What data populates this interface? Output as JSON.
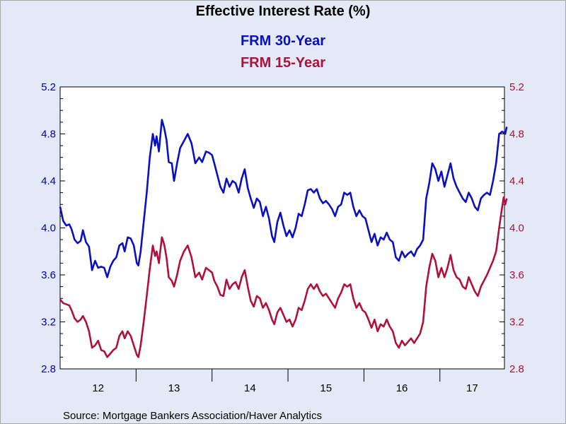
{
  "chart_data": {
    "type": "line",
    "title": "Effective Interest Rate (%)",
    "source": "Source:  Mortgage Bankers Association/Haver Analytics",
    "x_categories": [
      "12",
      "13",
      "14",
      "15",
      "16",
      "17"
    ],
    "x_range": [
      2012.0,
      2017.85
    ],
    "ylim": [
      2.8,
      5.2
    ],
    "yticks": [
      "2.8",
      "3.2",
      "3.6",
      "4.0",
      "4.4",
      "4.8",
      "5.2"
    ],
    "y_axis_left_color": "#0000b4",
    "y_axis_right_color": "#b0103c",
    "grid": false,
    "legend": "top-center",
    "series": [
      {
        "name": "FRM 30-Year",
        "color": "#0a10c0",
        "points": [
          [
            2012.0,
            4.18
          ],
          [
            2012.04,
            4.06
          ],
          [
            2012.08,
            4.02
          ],
          [
            2012.12,
            4.03
          ],
          [
            2012.15,
            3.99
          ],
          [
            2012.19,
            3.9
          ],
          [
            2012.23,
            3.87
          ],
          [
            2012.27,
            3.89
          ],
          [
            2012.3,
            3.98
          ],
          [
            2012.34,
            3.88
          ],
          [
            2012.38,
            3.84
          ],
          [
            2012.42,
            3.64
          ],
          [
            2012.46,
            3.72
          ],
          [
            2012.5,
            3.66
          ],
          [
            2012.54,
            3.67
          ],
          [
            2012.58,
            3.66
          ],
          [
            2012.62,
            3.58
          ],
          [
            2012.66,
            3.67
          ],
          [
            2012.7,
            3.72
          ],
          [
            2012.74,
            3.75
          ],
          [
            2012.78,
            3.85
          ],
          [
            2012.82,
            3.87
          ],
          [
            2012.85,
            3.8
          ],
          [
            2012.89,
            3.92
          ],
          [
            2012.93,
            3.91
          ],
          [
            2012.97,
            3.85
          ],
          [
            2013.01,
            3.7
          ],
          [
            2013.03,
            3.68
          ],
          [
            2013.06,
            3.8
          ],
          [
            2013.1,
            4.05
          ],
          [
            2013.14,
            4.3
          ],
          [
            2013.18,
            4.6
          ],
          [
            2013.22,
            4.8
          ],
          [
            2013.25,
            4.7
          ],
          [
            2013.27,
            4.78
          ],
          [
            2013.3,
            4.65
          ],
          [
            2013.34,
            4.92
          ],
          [
            2013.37,
            4.85
          ],
          [
            2013.4,
            4.75
          ],
          [
            2013.43,
            4.56
          ],
          [
            2013.47,
            4.55
          ],
          [
            2013.5,
            4.4
          ],
          [
            2013.54,
            4.55
          ],
          [
            2013.58,
            4.68
          ],
          [
            2013.63,
            4.74
          ],
          [
            2013.68,
            4.8
          ],
          [
            2013.73,
            4.72
          ],
          [
            2013.78,
            4.55
          ],
          [
            2013.83,
            4.6
          ],
          [
            2013.87,
            4.56
          ],
          [
            2013.92,
            4.65
          ],
          [
            2013.96,
            4.64
          ],
          [
            2014.0,
            4.62
          ],
          [
            2014.03,
            4.55
          ],
          [
            2014.07,
            4.45
          ],
          [
            2014.11,
            4.35
          ],
          [
            2014.15,
            4.3
          ],
          [
            2014.19,
            4.42
          ],
          [
            2014.23,
            4.35
          ],
          [
            2014.27,
            4.4
          ],
          [
            2014.31,
            4.38
          ],
          [
            2014.35,
            4.3
          ],
          [
            2014.39,
            4.42
          ],
          [
            2014.43,
            4.5
          ],
          [
            2014.47,
            4.34
          ],
          [
            2014.51,
            4.25
          ],
          [
            2014.55,
            4.17
          ],
          [
            2014.59,
            4.25
          ],
          [
            2014.63,
            4.22
          ],
          [
            2014.67,
            4.1
          ],
          [
            2014.71,
            4.18
          ],
          [
            2014.75,
            4.08
          ],
          [
            2014.79,
            3.93
          ],
          [
            2014.82,
            3.88
          ],
          [
            2014.86,
            4.05
          ],
          [
            2014.9,
            4.13
          ],
          [
            2014.94,
            4.02
          ],
          [
            2014.98,
            3.93
          ],
          [
            2015.02,
            3.98
          ],
          [
            2015.06,
            3.92
          ],
          [
            2015.1,
            4.0
          ],
          [
            2015.14,
            4.12
          ],
          [
            2015.18,
            4.1
          ],
          [
            2015.22,
            4.2
          ],
          [
            2015.26,
            4.32
          ],
          [
            2015.3,
            4.33
          ],
          [
            2015.34,
            4.3
          ],
          [
            2015.38,
            4.33
          ],
          [
            2015.42,
            4.25
          ],
          [
            2015.46,
            4.21
          ],
          [
            2015.5,
            4.23
          ],
          [
            2015.54,
            4.2
          ],
          [
            2015.58,
            4.16
          ],
          [
            2015.62,
            4.1
          ],
          [
            2015.66,
            4.18
          ],
          [
            2015.7,
            4.2
          ],
          [
            2015.74,
            4.3
          ],
          [
            2015.78,
            4.28
          ],
          [
            2015.82,
            4.3
          ],
          [
            2015.86,
            4.18
          ],
          [
            2015.9,
            4.1
          ],
          [
            2015.94,
            4.15
          ],
          [
            2015.98,
            4.1
          ],
          [
            2016.02,
            4.08
          ],
          [
            2016.06,
            3.98
          ],
          [
            2016.1,
            3.88
          ],
          [
            2016.14,
            3.95
          ],
          [
            2016.18,
            3.85
          ],
          [
            2016.22,
            3.92
          ],
          [
            2016.26,
            3.9
          ],
          [
            2016.3,
            3.96
          ],
          [
            2016.34,
            3.9
          ],
          [
            2016.38,
            3.88
          ],
          [
            2016.42,
            3.75
          ],
          [
            2016.46,
            3.72
          ],
          [
            2016.5,
            3.8
          ],
          [
            2016.54,
            3.75
          ],
          [
            2016.58,
            3.78
          ],
          [
            2016.62,
            3.8
          ],
          [
            2016.66,
            3.76
          ],
          [
            2016.7,
            3.82
          ],
          [
            2016.74,
            3.85
          ],
          [
            2016.78,
            3.9
          ],
          [
            2016.82,
            4.25
          ],
          [
            2016.86,
            4.38
          ],
          [
            2016.9,
            4.55
          ],
          [
            2016.94,
            4.5
          ],
          [
            2016.98,
            4.4
          ],
          [
            2017.02,
            4.48
          ],
          [
            2017.06,
            4.35
          ],
          [
            2017.1,
            4.45
          ],
          [
            2017.14,
            4.55
          ],
          [
            2017.18,
            4.42
          ],
          [
            2017.22,
            4.35
          ],
          [
            2017.26,
            4.3
          ],
          [
            2017.3,
            4.25
          ],
          [
            2017.34,
            4.22
          ],
          [
            2017.38,
            4.3
          ],
          [
            2017.42,
            4.25
          ],
          [
            2017.46,
            4.18
          ],
          [
            2017.5,
            4.15
          ],
          [
            2017.54,
            4.25
          ],
          [
            2017.58,
            4.28
          ],
          [
            2017.62,
            4.3
          ],
          [
            2017.66,
            4.28
          ],
          [
            2017.7,
            4.4
          ],
          [
            2017.74,
            4.55
          ],
          [
            2017.78,
            4.8
          ],
          [
            2017.82,
            4.82
          ],
          [
            2017.86,
            4.8
          ],
          [
            2017.88,
            4.86
          ]
        ]
      },
      {
        "name": "FRM 15-Year",
        "color": "#b0103c",
        "points": [
          [
            2012.0,
            3.39
          ],
          [
            2012.04,
            3.36
          ],
          [
            2012.08,
            3.35
          ],
          [
            2012.12,
            3.34
          ],
          [
            2012.15,
            3.3
          ],
          [
            2012.19,
            3.23
          ],
          [
            2012.23,
            3.2
          ],
          [
            2012.27,
            3.22
          ],
          [
            2012.3,
            3.25
          ],
          [
            2012.34,
            3.2
          ],
          [
            2012.38,
            3.12
          ],
          [
            2012.42,
            2.98
          ],
          [
            2012.46,
            3.0
          ],
          [
            2012.5,
            3.04
          ],
          [
            2012.54,
            2.96
          ],
          [
            2012.58,
            2.95
          ],
          [
            2012.62,
            2.9
          ],
          [
            2012.66,
            2.93
          ],
          [
            2012.7,
            2.96
          ],
          [
            2012.74,
            2.98
          ],
          [
            2012.78,
            3.08
          ],
          [
            2012.82,
            3.12
          ],
          [
            2012.85,
            3.06
          ],
          [
            2012.89,
            3.12
          ],
          [
            2012.93,
            3.08
          ],
          [
            2012.97,
            3.0
          ],
          [
            2013.01,
            2.92
          ],
          [
            2013.03,
            2.9
          ],
          [
            2013.06,
            3.0
          ],
          [
            2013.1,
            3.2
          ],
          [
            2013.14,
            3.42
          ],
          [
            2013.18,
            3.65
          ],
          [
            2013.22,
            3.85
          ],
          [
            2013.25,
            3.76
          ],
          [
            2013.27,
            3.8
          ],
          [
            2013.3,
            3.7
          ],
          [
            2013.34,
            3.92
          ],
          [
            2013.37,
            3.86
          ],
          [
            2013.4,
            3.75
          ],
          [
            2013.43,
            3.58
          ],
          [
            2013.47,
            3.55
          ],
          [
            2013.5,
            3.5
          ],
          [
            2013.54,
            3.6
          ],
          [
            2013.58,
            3.72
          ],
          [
            2013.63,
            3.8
          ],
          [
            2013.68,
            3.85
          ],
          [
            2013.73,
            3.75
          ],
          [
            2013.78,
            3.58
          ],
          [
            2013.83,
            3.62
          ],
          [
            2013.87,
            3.56
          ],
          [
            2013.92,
            3.66
          ],
          [
            2013.96,
            3.64
          ],
          [
            2014.0,
            3.62
          ],
          [
            2014.03,
            3.55
          ],
          [
            2014.07,
            3.5
          ],
          [
            2014.11,
            3.43
          ],
          [
            2014.15,
            3.42
          ],
          [
            2014.19,
            3.56
          ],
          [
            2014.23,
            3.48
          ],
          [
            2014.27,
            3.52
          ],
          [
            2014.31,
            3.54
          ],
          [
            2014.35,
            3.48
          ],
          [
            2014.39,
            3.58
          ],
          [
            2014.43,
            3.64
          ],
          [
            2014.47,
            3.5
          ],
          [
            2014.51,
            3.38
          ],
          [
            2014.55,
            3.33
          ],
          [
            2014.59,
            3.42
          ],
          [
            2014.63,
            3.4
          ],
          [
            2014.67,
            3.32
          ],
          [
            2014.71,
            3.36
          ],
          [
            2014.75,
            3.3
          ],
          [
            2014.79,
            3.22
          ],
          [
            2014.82,
            3.18
          ],
          [
            2014.86,
            3.28
          ],
          [
            2014.9,
            3.32
          ],
          [
            2014.94,
            3.26
          ],
          [
            2014.98,
            3.2
          ],
          [
            2015.02,
            3.22
          ],
          [
            2015.06,
            3.16
          ],
          [
            2015.1,
            3.22
          ],
          [
            2015.14,
            3.32
          ],
          [
            2015.18,
            3.3
          ],
          [
            2015.22,
            3.38
          ],
          [
            2015.26,
            3.48
          ],
          [
            2015.3,
            3.52
          ],
          [
            2015.34,
            3.48
          ],
          [
            2015.38,
            3.52
          ],
          [
            2015.42,
            3.46
          ],
          [
            2015.46,
            3.42
          ],
          [
            2015.5,
            3.44
          ],
          [
            2015.54,
            3.4
          ],
          [
            2015.58,
            3.36
          ],
          [
            2015.62,
            3.32
          ],
          [
            2015.66,
            3.4
          ],
          [
            2015.7,
            3.45
          ],
          [
            2015.74,
            3.52
          ],
          [
            2015.78,
            3.5
          ],
          [
            2015.82,
            3.52
          ],
          [
            2015.86,
            3.4
          ],
          [
            2015.9,
            3.32
          ],
          [
            2015.94,
            3.36
          ],
          [
            2015.98,
            3.3
          ],
          [
            2016.02,
            3.28
          ],
          [
            2016.06,
            3.22
          ],
          [
            2016.1,
            3.15
          ],
          [
            2016.14,
            3.22
          ],
          [
            2016.18,
            3.12
          ],
          [
            2016.22,
            3.18
          ],
          [
            2016.26,
            3.16
          ],
          [
            2016.3,
            3.22
          ],
          [
            2016.34,
            3.16
          ],
          [
            2016.38,
            3.12
          ],
          [
            2016.42,
            3.02
          ],
          [
            2016.46,
            2.98
          ],
          [
            2016.5,
            3.04
          ],
          [
            2016.54,
            3.0
          ],
          [
            2016.58,
            3.03
          ],
          [
            2016.62,
            3.06
          ],
          [
            2016.66,
            3.02
          ],
          [
            2016.7,
            3.06
          ],
          [
            2016.74,
            3.1
          ],
          [
            2016.78,
            3.2
          ],
          [
            2016.82,
            3.5
          ],
          [
            2016.86,
            3.66
          ],
          [
            2016.9,
            3.78
          ],
          [
            2016.94,
            3.72
          ],
          [
            2016.98,
            3.58
          ],
          [
            2017.02,
            3.66
          ],
          [
            2017.06,
            3.58
          ],
          [
            2017.1,
            3.66
          ],
          [
            2017.14,
            3.77
          ],
          [
            2017.18,
            3.64
          ],
          [
            2017.22,
            3.58
          ],
          [
            2017.26,
            3.56
          ],
          [
            2017.3,
            3.5
          ],
          [
            2017.34,
            3.48
          ],
          [
            2017.38,
            3.58
          ],
          [
            2017.42,
            3.52
          ],
          [
            2017.46,
            3.46
          ],
          [
            2017.5,
            3.42
          ],
          [
            2017.54,
            3.5
          ],
          [
            2017.58,
            3.55
          ],
          [
            2017.62,
            3.6
          ],
          [
            2017.66,
            3.66
          ],
          [
            2017.7,
            3.72
          ],
          [
            2017.74,
            3.8
          ],
          [
            2017.78,
            4.0
          ],
          [
            2017.82,
            4.18
          ],
          [
            2017.84,
            4.26
          ],
          [
            2017.86,
            4.2
          ],
          [
            2017.88,
            4.25
          ]
        ]
      }
    ]
  }
}
